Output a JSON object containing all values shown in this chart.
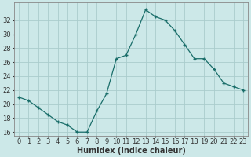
{
  "x": [
    0,
    1,
    2,
    3,
    4,
    5,
    6,
    7,
    8,
    9,
    10,
    11,
    12,
    13,
    14,
    15,
    16,
    17,
    18,
    19,
    20,
    21,
    22,
    23
  ],
  "y": [
    21.0,
    20.5,
    19.5,
    18.5,
    17.5,
    17.0,
    16.0,
    16.0,
    19.0,
    21.5,
    26.5,
    27.0,
    30.0,
    33.5,
    32.5,
    32.0,
    30.5,
    28.5,
    26.5,
    26.5,
    25.0,
    23.0,
    22.5,
    22.0
  ],
  "bg_color": "#cce8e8",
  "grid_color": "#aacccc",
  "line_color": "#1a6e6a",
  "marker_color": "#1a6e6a",
  "xlabel": "Humidex (Indice chaleur)",
  "ylim": [
    15.5,
    34.5
  ],
  "xlim": [
    -0.5,
    23.5
  ],
  "yticks": [
    16,
    18,
    20,
    22,
    24,
    26,
    28,
    30,
    32
  ],
  "xticks": [
    0,
    1,
    2,
    3,
    4,
    5,
    6,
    7,
    8,
    9,
    10,
    11,
    12,
    13,
    14,
    15,
    16,
    17,
    18,
    19,
    20,
    21,
    22,
    23
  ],
  "font_color": "#333333",
  "tick_fontsize": 6,
  "xlabel_fontsize": 7
}
